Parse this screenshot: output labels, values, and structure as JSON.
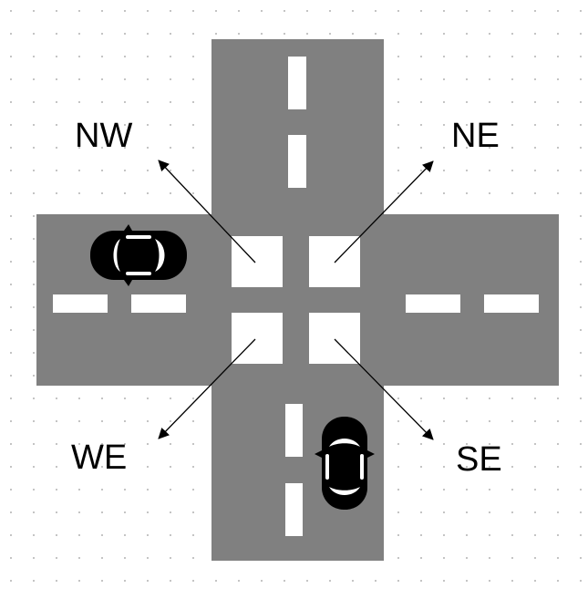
{
  "diagram": {
    "labels": {
      "nw": "NW",
      "ne": "NE",
      "we": "WE",
      "se": "SE"
    },
    "colors": {
      "background": "#ffffff",
      "grid_dot": "#9a9a9a",
      "road": "#808080",
      "marking": "#ffffff",
      "car_body": "#000000",
      "car_window": "#ffffff",
      "arrow": "#000000",
      "label": "#000000"
    },
    "icons": {
      "car": "car-icon",
      "arrow": "arrow-icon"
    }
  }
}
